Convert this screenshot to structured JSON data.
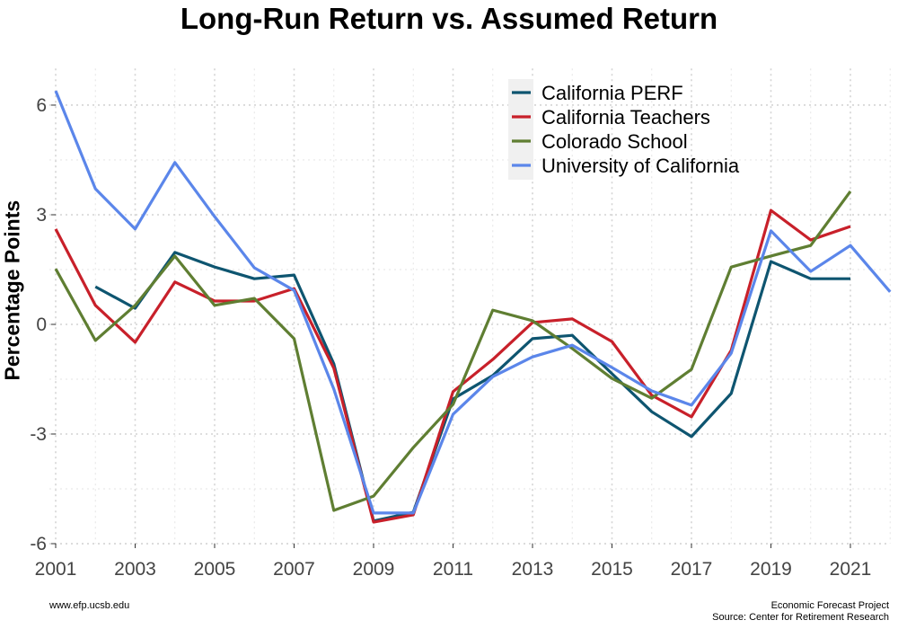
{
  "chart_data": {
    "type": "line",
    "title": "Long-Run Return vs. Assumed Return",
    "xlabel": "",
    "ylabel": "Percentage Points",
    "x": [
      2001,
      2002,
      2003,
      2004,
      2005,
      2006,
      2007,
      2008,
      2009,
      2010,
      2011,
      2012,
      2013,
      2014,
      2015,
      2016,
      2017,
      2018,
      2019,
      2020,
      2021,
      2022
    ],
    "xlim": [
      2001,
      2022
    ],
    "ylim": [
      -6,
      7
    ],
    "x_ticks": [
      "2001",
      "2003",
      "2005",
      "2007",
      "2009",
      "2011",
      "2013",
      "2015",
      "2017",
      "2019",
      "2021"
    ],
    "y_ticks": [
      "-6",
      "-3",
      "0",
      "3",
      "6"
    ],
    "grid": true,
    "legend_position": "top-right",
    "series": [
      {
        "name": "California PERF",
        "color": "#0e5570",
        "values": [
          null,
          1.03,
          0.44,
          1.97,
          1.57,
          1.25,
          1.35,
          -1.08,
          -5.38,
          -5.14,
          -2.04,
          -1.4,
          -0.39,
          -0.3,
          -1.35,
          -2.39,
          -3.07,
          -1.89,
          1.72,
          1.25,
          1.25,
          null
        ]
      },
      {
        "name": "California Teachers",
        "color": "#c8202a",
        "values": [
          2.61,
          0.52,
          -0.49,
          1.16,
          0.64,
          0.64,
          0.98,
          -1.2,
          -5.41,
          -5.21,
          -1.84,
          -0.96,
          0.05,
          0.15,
          -0.47,
          -1.94,
          -2.53,
          -0.71,
          3.12,
          2.31,
          2.68,
          null
        ]
      },
      {
        "name": "Colorado School",
        "color": "#5f7e32",
        "values": [
          1.52,
          -0.44,
          0.52,
          1.87,
          0.52,
          0.71,
          -0.39,
          -5.09,
          -4.7,
          -3.37,
          -2.19,
          0.39,
          0.1,
          -0.66,
          -1.48,
          -2.02,
          -1.23,
          1.57,
          1.87,
          2.16,
          3.64,
          null
        ]
      },
      {
        "name": "University of California",
        "color": "#5b86ea",
        "values": [
          6.39,
          3.71,
          2.61,
          4.43,
          2.95,
          1.55,
          0.93,
          -1.77,
          -5.16,
          -5.16,
          -2.46,
          -1.43,
          -0.89,
          -0.57,
          -1.18,
          -1.82,
          -2.21,
          -0.79,
          2.56,
          1.45,
          2.16,
          0.89
        ]
      }
    ]
  },
  "footer": {
    "left": "www.efp.ucsb.edu",
    "right_line1": "Economic Forecast Project",
    "right_line2": "Source: Center for Retirement Research"
  }
}
